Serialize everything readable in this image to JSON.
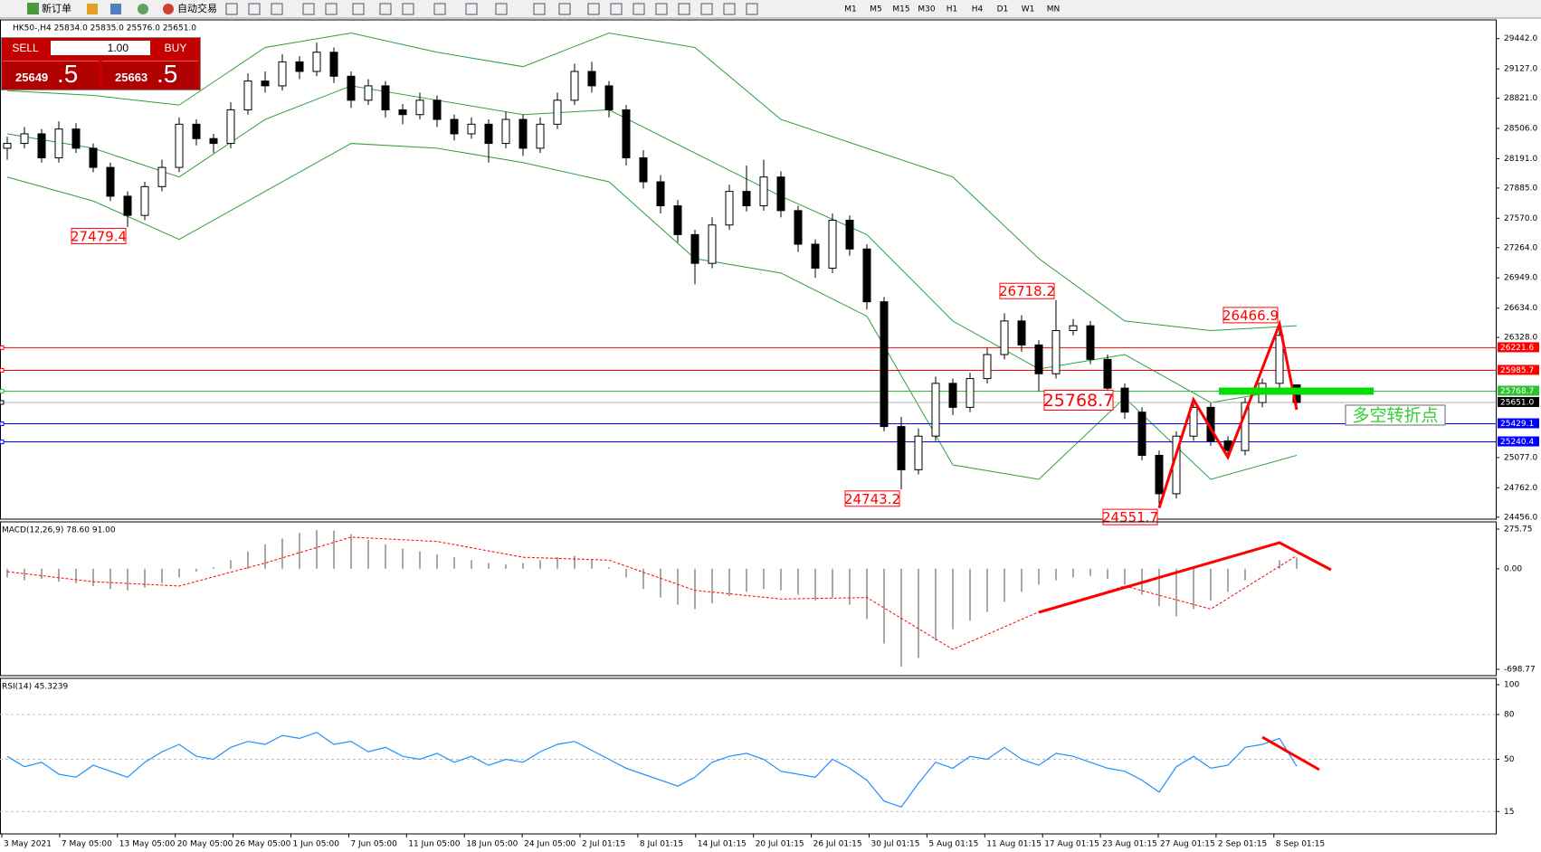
{
  "toolbar": {
    "new_order": "新订单",
    "auto_trading": "自动交易",
    "timeframes": [
      "M1",
      "M5",
      "M15",
      "M30",
      "H1",
      "H4",
      "D1",
      "W1",
      "MN"
    ]
  },
  "trade_panel": {
    "sell": "SELL",
    "buy": "BUY",
    "volume": "1.00",
    "bid_main": "25649",
    "bid_pips": ".5",
    "ask_main": "25663",
    "ask_pips": ".5"
  },
  "time_axis": [
    "3 May 2021",
    "7 May 05:00",
    "13 May 05:00",
    "20 May 05:00",
    "26 May 05:00",
    "1 Jun 05:00",
    "7 Jun 05:00",
    "11 Jun 05:00",
    "18 Jun 05:00",
    "24 Jun 05:00",
    "2 Jul 01:15",
    "8 Jul 01:15",
    "14 Jul 01:15",
    "20 Jul 01:15",
    "26 Jul 01:15",
    "30 Jul 01:15",
    "5 Aug 01:15",
    "11 Aug 01:15",
    "17 Aug 01:15",
    "23 Aug 01:15",
    "27 Aug 01:15",
    "2 Sep 01:15",
    "8 Sep 01:15"
  ],
  "chart_data": [
    {
      "type": "candlestick",
      "title": "HK50-,H4  25834.0 25835.0 25576.0 25651.0",
      "bull_color": "#ffffff",
      "bear_color": "#000000",
      "candles": [
        [
          28300,
          28420,
          28180,
          28350
        ],
        [
          28350,
          28520,
          28300,
          28450
        ],
        [
          28450,
          28500,
          28150,
          28200
        ],
        [
          28200,
          28580,
          28150,
          28500
        ],
        [
          28500,
          28560,
          28250,
          28300
        ],
        [
          28300,
          28350,
          28050,
          28100
        ],
        [
          28100,
          28150,
          27750,
          27800
        ],
        [
          27800,
          27850,
          27479.4,
          27600
        ],
        [
          27600,
          27950,
          27550,
          27900
        ],
        [
          27900,
          28180,
          27850,
          28100
        ],
        [
          28100,
          28620,
          28050,
          28550
        ],
        [
          28550,
          28600,
          28330,
          28400
        ],
        [
          28400,
          28450,
          28250,
          28350
        ],
        [
          28350,
          28780,
          28300,
          28700
        ],
        [
          28700,
          29080,
          28650,
          29000
        ],
        [
          29000,
          29100,
          28880,
          28950
        ],
        [
          28950,
          29280,
          28900,
          29200
        ],
        [
          29200,
          29260,
          29020,
          29100
        ],
        [
          29100,
          29400,
          29050,
          29300
        ],
        [
          29300,
          29350,
          28980,
          29050
        ],
        [
          29050,
          29100,
          28720,
          28800
        ],
        [
          28800,
          29020,
          28750,
          28950
        ],
        [
          28950,
          29000,
          28620,
          28700
        ],
        [
          28700,
          28760,
          28550,
          28650
        ],
        [
          28650,
          28880,
          28600,
          28800
        ],
        [
          28800,
          28850,
          28520,
          28600
        ],
        [
          28600,
          28650,
          28380,
          28450
        ],
        [
          28450,
          28620,
          28400,
          28550
        ],
        [
          28550,
          28600,
          28150,
          28350
        ],
        [
          28350,
          28680,
          28300,
          28600
        ],
        [
          28600,
          28650,
          28220,
          28300
        ],
        [
          28300,
          28620,
          28250,
          28550
        ],
        [
          28550,
          28880,
          28500,
          28800
        ],
        [
          28800,
          29180,
          28750,
          29100
        ],
        [
          29100,
          29200,
          28880,
          28950
        ],
        [
          28950,
          29000,
          28620,
          28700
        ],
        [
          28700,
          28750,
          28120,
          28200
        ],
        [
          28200,
          28280,
          27880,
          27950
        ],
        [
          27950,
          28020,
          27620,
          27700
        ],
        [
          27700,
          27760,
          27320,
          27400
        ],
        [
          27400,
          27450,
          26880,
          27100
        ],
        [
          27100,
          27580,
          27050,
          27500
        ],
        [
          27500,
          27920,
          27450,
          27850
        ],
        [
          27850,
          28120,
          27640,
          27700
        ],
        [
          27700,
          28180,
          27650,
          28000
        ],
        [
          28000,
          28060,
          27580,
          27650
        ],
        [
          27650,
          27700,
          27220,
          27300
        ],
        [
          27300,
          27350,
          26950,
          27050
        ],
        [
          27050,
          27620,
          27000,
          27550
        ],
        [
          27550,
          27600,
          27180,
          27250
        ],
        [
          27250,
          27300,
          26620,
          26700
        ],
        [
          26700,
          26750,
          25350,
          25400
        ],
        [
          25400,
          25500,
          24743.2,
          24950
        ],
        [
          24950,
          25380,
          24900,
          25300
        ],
        [
          25300,
          25920,
          25250,
          25850
        ],
        [
          25850,
          25900,
          25520,
          25600
        ],
        [
          25600,
          25960,
          25550,
          25900
        ],
        [
          25900,
          26220,
          25850,
          26150
        ],
        [
          26150,
          26580,
          26100,
          26500
        ],
        [
          26500,
          26560,
          26180,
          26250
        ],
        [
          26250,
          26300,
          25768.7,
          25950
        ],
        [
          25950,
          26718.2,
          25900,
          26400
        ],
        [
          26400,
          26520,
          26350,
          26450
        ],
        [
          26450,
          26500,
          26050,
          26100
        ],
        [
          26100,
          26150,
          25750,
          25800
        ],
        [
          25800,
          25850,
          25480,
          25550
        ],
        [
          25550,
          25600,
          25050,
          25100
        ],
        [
          25100,
          25150,
          24551.7,
          24700
        ],
        [
          24700,
          25350,
          24650,
          25300
        ],
        [
          25300,
          25680,
          25250,
          25600
        ],
        [
          25600,
          25650,
          25200,
          25250
        ],
        [
          25250,
          25300,
          25080,
          25150
        ],
        [
          25150,
          25700,
          25100,
          25650
        ],
        [
          25650,
          25900,
          25600,
          25850
        ],
        [
          25850,
          26466.9,
          25800,
          26350
        ],
        [
          25834,
          25835,
          25576,
          25651
        ]
      ],
      "bands": {
        "color": "#2e9e3e",
        "x": [
          0,
          5,
          10,
          15,
          20,
          25,
          30,
          35,
          40,
          45,
          50,
          55,
          60,
          65,
          70,
          75
        ],
        "upper": [
          28900,
          28850,
          28750,
          29350,
          29500,
          29300,
          29150,
          29500,
          29350,
          28600,
          28300,
          28000,
          27150,
          26500,
          26400,
          26450
        ],
        "middle": [
          28450,
          28300,
          28000,
          28600,
          28950,
          28800,
          28650,
          28700,
          28250,
          27800,
          27400,
          26500,
          26000,
          26150,
          25650,
          25800
        ],
        "lower": [
          28000,
          27750,
          27350,
          27850,
          28350,
          28300,
          28150,
          27950,
          27150,
          27000,
          26550,
          25000,
          24850,
          25700,
          24850,
          25100
        ]
      },
      "ylim": [
        24435,
        29637
      ],
      "yticks": [
        {
          "value": 29442,
          "label": "29442.0"
        },
        {
          "value": 29127,
          "label": "29127.0"
        },
        {
          "value": 28821,
          "label": "28821.0"
        },
        {
          "value": 28506,
          "label": "28506.0"
        },
        {
          "value": 28191,
          "label": "28191.0"
        },
        {
          "value": 27885,
          "label": "27885.0"
        },
        {
          "value": 27570,
          "label": "27570.0"
        },
        {
          "value": 27264,
          "label": "27264.0"
        },
        {
          "value": 26949,
          "label": "26949.0"
        },
        {
          "value": 26634,
          "label": "26634.0"
        },
        {
          "value": 26328,
          "label": "26328.0"
        },
        {
          "value": 25077,
          "label": "25077.0"
        },
        {
          "value": 24762,
          "label": "24762.0"
        },
        {
          "value": 24456,
          "label": "24456.0"
        }
      ],
      "levels": [
        {
          "value": 26221.6,
          "color": "#ff0000"
        },
        {
          "value": 25985.7,
          "color": "#ff0000"
        },
        {
          "value": 25768.7,
          "color": "#2ec02e"
        },
        {
          "value": 25651,
          "label": "25651.0",
          "color": "#000000"
        },
        {
          "value": 25429.1,
          "color": "#0000ff"
        },
        {
          "value": 25240.4,
          "color": "#0000ff"
        }
      ],
      "annotations": [
        27479.4,
        26718.2,
        25768.7,
        24743.2,
        24551.7,
        26466.9
      ],
      "note": "多空转折点"
    },
    {
      "type": "macd",
      "title": "MACD(12,26,9) 78.60 91.00",
      "ylim": [
        -698.77,
        275.75
      ],
      "yticks": [
        275.75,
        {
          "value": 0,
          "label": "0.00"
        },
        -698.77
      ],
      "histogram": {
        "color": "#a8a8a8",
        "values": [
          -60,
          -80,
          -70,
          -90,
          -100,
          -120,
          -140,
          -150,
          -130,
          -100,
          -60,
          -20,
          10,
          60,
          120,
          170,
          210,
          250,
          270,
          265,
          240,
          200,
          170,
          140,
          120,
          100,
          80,
          60,
          40,
          30,
          40,
          60,
          80,
          90,
          60,
          10,
          -60,
          -140,
          -200,
          -250,
          -280,
          -240,
          -190,
          -160,
          -140,
          -150,
          -180,
          -220,
          -200,
          -250,
          -350,
          -520,
          -680,
          -620,
          -500,
          -420,
          -360,
          -300,
          -230,
          -160,
          -110,
          -80,
          -60,
          -50,
          -70,
          -110,
          -180,
          -260,
          -330,
          -280,
          -220,
          -160,
          -80,
          0,
          60,
          78.6
        ]
      },
      "signal": {
        "color": "#ff0000",
        "x": [
          0,
          5,
          10,
          15,
          20,
          25,
          30,
          35,
          40,
          45,
          50,
          55,
          60,
          65,
          70,
          75
        ],
        "values": [
          -20,
          -90,
          -120,
          40,
          220,
          190,
          80,
          60,
          -150,
          -210,
          -200,
          -560,
          -300,
          -120,
          -280,
          91
        ]
      }
    },
    {
      "type": "line",
      "title": "RSI(14) 45.3239",
      "color": "#1e90ff",
      "ylim": [
        0,
        100
      ],
      "yticks": [
        100,
        80,
        50,
        15
      ],
      "values": [
        52,
        45,
        48,
        40,
        38,
        46,
        42,
        38,
        48,
        55,
        60,
        52,
        50,
        58,
        62,
        60,
        66,
        64,
        68,
        60,
        62,
        55,
        58,
        52,
        50,
        54,
        48,
        52,
        46,
        50,
        48,
        55,
        60,
        62,
        56,
        50,
        44,
        40,
        36,
        32,
        38,
        48,
        52,
        54,
        50,
        42,
        40,
        38,
        50,
        44,
        36,
        22,
        18,
        34,
        48,
        44,
        52,
        50,
        58,
        50,
        46,
        54,
        52,
        48,
        44,
        42,
        36,
        28,
        45,
        52,
        44,
        46,
        58,
        60,
        64,
        45.3239
      ]
    }
  ]
}
